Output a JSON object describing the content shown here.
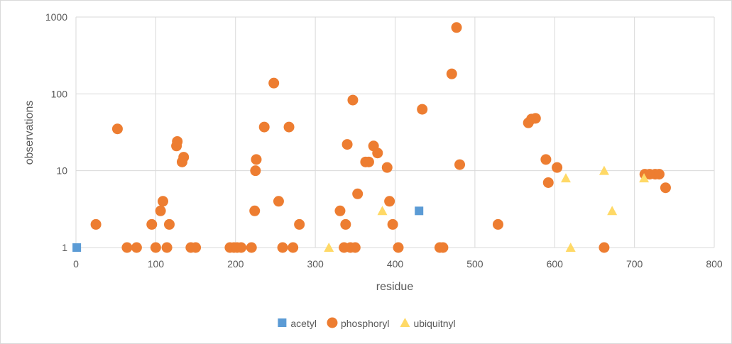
{
  "chart_data": {
    "type": "scatter",
    "xlabel": "residue",
    "ylabel": "observations",
    "xlim": [
      0,
      800
    ],
    "ylim": [
      1,
      1000
    ],
    "yscale": "log",
    "grid": true,
    "legend_position": "bottom",
    "x_ticks": [
      "0",
      "100",
      "200",
      "300",
      "400",
      "500",
      "600",
      "700",
      "800"
    ],
    "y_ticks": [
      "1",
      "10",
      "100",
      "1000"
    ],
    "series": [
      {
        "name": "acetyl",
        "marker": "square",
        "color": "#5b9bd5",
        "points": [
          [
            1,
            1
          ],
          [
            430,
            3
          ]
        ]
      },
      {
        "name": "phosphoryl",
        "marker": "circle",
        "color": "#ed7d31",
        "points": [
          [
            25,
            2
          ],
          [
            52,
            35
          ],
          [
            64,
            1
          ],
          [
            76,
            1
          ],
          [
            95,
            2
          ],
          [
            100,
            1
          ],
          [
            106,
            3
          ],
          [
            109,
            4
          ],
          [
            114,
            1
          ],
          [
            117,
            2
          ],
          [
            126,
            21
          ],
          [
            127,
            24
          ],
          [
            133,
            13
          ],
          [
            135,
            15
          ],
          [
            144,
            1
          ],
          [
            150,
            1
          ],
          [
            193,
            1
          ],
          [
            198,
            1
          ],
          [
            202,
            1
          ],
          [
            207,
            1
          ],
          [
            220,
            1
          ],
          [
            224,
            3
          ],
          [
            225,
            10
          ],
          [
            226,
            14
          ],
          [
            236,
            37
          ],
          [
            248,
            138
          ],
          [
            254,
            4
          ],
          [
            259,
            1
          ],
          [
            267,
            37
          ],
          [
            272,
            1
          ],
          [
            280,
            2
          ],
          [
            331,
            3
          ],
          [
            336,
            1
          ],
          [
            338,
            2
          ],
          [
            340,
            22
          ],
          [
            344,
            1
          ],
          [
            347,
            83
          ],
          [
            350,
            1
          ],
          [
            353,
            5
          ],
          [
            363,
            13
          ],
          [
            367,
            13
          ],
          [
            373,
            21
          ],
          [
            378,
            17
          ],
          [
            390,
            11
          ],
          [
            393,
            4
          ],
          [
            397,
            2
          ],
          [
            404,
            1
          ],
          [
            434,
            63
          ],
          [
            456,
            1
          ],
          [
            460,
            1
          ],
          [
            471,
            182
          ],
          [
            477,
            730
          ],
          [
            481,
            12
          ],
          [
            529,
            2
          ],
          [
            567,
            42
          ],
          [
            571,
            47
          ],
          [
            576,
            48
          ],
          [
            589,
            14
          ],
          [
            592,
            7
          ],
          [
            603,
            11
          ],
          [
            662,
            1
          ],
          [
            713,
            9
          ],
          [
            719,
            9
          ],
          [
            726,
            9
          ],
          [
            731,
            9
          ],
          [
            739,
            6
          ]
        ]
      },
      {
        "name": "ubiquitnyl",
        "marker": "triangle",
        "color": "#ffd966",
        "points": [
          [
            317,
            1
          ],
          [
            384,
            3
          ],
          [
            614,
            8
          ],
          [
            620,
            1
          ],
          [
            662,
            10
          ],
          [
            672,
            3
          ],
          [
            712,
            8
          ]
        ]
      }
    ]
  }
}
